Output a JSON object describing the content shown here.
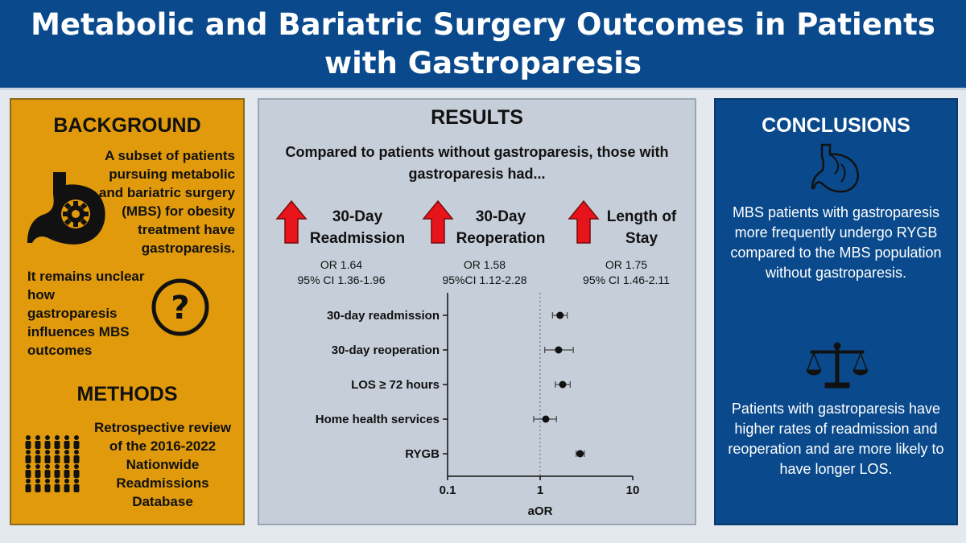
{
  "title": "Metabolic and Bariatric Surgery Outcomes in Patients with Gastroparesis",
  "background": {
    "heading": "BACKGROUND",
    "text1": "A subset of patients pursuing metabolic and bariatric surgery (MBS) for obesity treatment have gastroparesis.",
    "text2": "It remains unclear how gastroparesis influences MBS outcomes"
  },
  "methods": {
    "heading": "METHODS",
    "text": "Retrospective review of the 2016-2022 Nationwide Readmissions Database"
  },
  "results": {
    "heading": "RESULTS",
    "subtitle": "Compared to patients without gastroparesis, those with gastroparesis had...",
    "outcomes": [
      {
        "line1": "30-Day",
        "line2": "Readmission",
        "or": "OR 1.64",
        "ci": "95% CI 1.36-1.96"
      },
      {
        "line1": "30-Day",
        "line2": "Reoperation",
        "or": "OR 1.58",
        "ci": "95%CI 1.12-2.28"
      },
      {
        "line1": "Length of",
        "line2": "Stay",
        "or": "OR 1.75",
        "ci": "95% CI 1.46-2.11"
      }
    ]
  },
  "chart_data": {
    "type": "scatter",
    "subtype": "forest-plot",
    "xscale": "log",
    "xlim": [
      0.1,
      10
    ],
    "xticks": [
      "0.1",
      "1",
      "10"
    ],
    "xlabel": "aOR",
    "reference_line": 1,
    "rows": [
      {
        "label": "30-day readmission",
        "estimate": 1.64,
        "lower": 1.36,
        "upper": 1.96
      },
      {
        "label": "30-day reoperation",
        "estimate": 1.58,
        "lower": 1.12,
        "upper": 2.28
      },
      {
        "label": "LOS ≥ 72 hours",
        "estimate": 1.75,
        "lower": 1.46,
        "upper": 2.11
      },
      {
        "label": "Home health services",
        "estimate": 1.15,
        "lower": 0.85,
        "upper": 1.5
      },
      {
        "label": "RYGB",
        "estimate": 2.7,
        "lower": 2.45,
        "upper": 3.0
      }
    ]
  },
  "conclusions": {
    "heading": "CONCLUSIONS",
    "text1": "MBS patients with gastroparesis more frequently undergo RYGB compared to the MBS population without gastroparesis.",
    "text2": "Patients with gastroparesis have higher rates of readmission and reoperation and are more likely to have longer LOS."
  },
  "colors": {
    "header": "#0a4a8c",
    "left_panel": "#e09a0c",
    "mid_panel": "#c5ced9",
    "right_panel": "#0a4a8c",
    "arrow": "#e8141c"
  }
}
